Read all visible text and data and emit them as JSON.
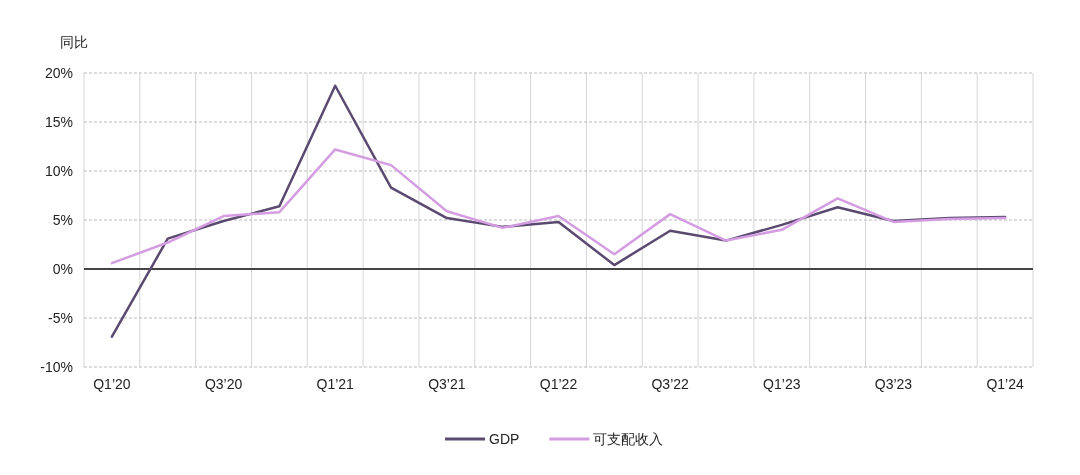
{
  "chart_data": {
    "type": "line",
    "ylabel": "同比",
    "categories": [
      "Q1’20",
      null,
      "Q3’20",
      null,
      "Q1’21",
      null,
      "Q3’21",
      null,
      "Q1’22",
      null,
      "Q3’22",
      null,
      "Q1’23",
      null,
      "Q3’23",
      null,
      "Q1’24"
    ],
    "series": [
      {
        "name": "GDP",
        "color": "#5b4a70",
        "values": [
          -6.9,
          3.1,
          4.9,
          6.4,
          18.7,
          8.3,
          5.2,
          4.3,
          4.8,
          0.4,
          3.9,
          2.9,
          4.5,
          6.3,
          4.9,
          5.2,
          5.3
        ]
      },
      {
        "name": "可支配收入",
        "color": "#d49de2",
        "values": [
          0.6,
          2.7,
          5.4,
          5.8,
          12.2,
          10.6,
          5.9,
          4.2,
          5.4,
          1.5,
          5.6,
          2.9,
          4.0,
          7.2,
          4.8,
          5.1,
          5.2
        ]
      }
    ],
    "ylim": [
      -10,
      20
    ],
    "yticks": [
      {
        "value": -10,
        "label": "-10%"
      },
      {
        "value": -5,
        "label": "-5%"
      },
      {
        "value": 0,
        "label": "0%"
      },
      {
        "value": 5,
        "label": "5%"
      },
      {
        "value": 10,
        "label": "10%"
      },
      {
        "value": 15,
        "label": "15%"
      },
      {
        "value": 20,
        "label": "20%"
      }
    ],
    "ref_lines": [
      {
        "axis": "y",
        "value": 0,
        "color": "#444444"
      }
    ],
    "grid": true,
    "legend": "bottom",
    "marker": "none",
    "line_style": "solid"
  }
}
